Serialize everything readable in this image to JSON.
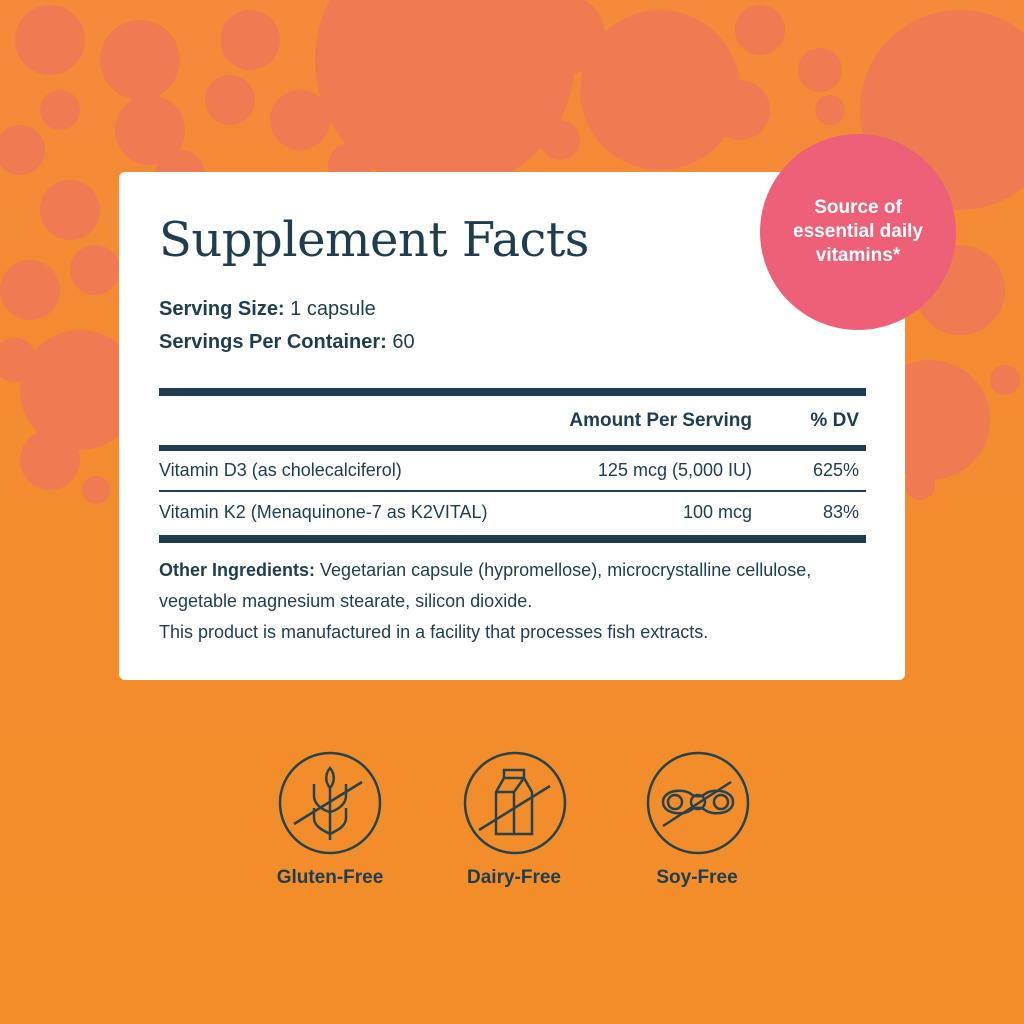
{
  "title": "Supplement Facts",
  "serving_size_label": "Serving Size:",
  "serving_size_value": "1 capsule",
  "servings_label": "Servings Per Container:",
  "servings_value": "60",
  "table": {
    "headers": [
      "Amount Per Serving",
      "% DV"
    ],
    "rows": [
      {
        "name": "Vitamin D3 (as cholecalciferol)",
        "amount": "125 mcg (5,000 IU)",
        "dv": "625%"
      },
      {
        "name": "Vitamin K2 (Menaquinone-7 as K2VITAL)",
        "amount": "100 mcg",
        "dv": "83%"
      }
    ]
  },
  "other_label": "Other Ingredients:",
  "other_text": "Vegetarian capsule (hypromellose), microcrystalline cellulose, vegetable magnesium stearate, silicon dioxide.",
  "facility_note": "This product is manufactured in a facility that processes fish extracts.",
  "badge": "Source of essential daily vitamins*",
  "icons": [
    {
      "icon": "wheat-crossed-icon",
      "label": "Gluten-Free"
    },
    {
      "icon": "milk-carton-crossed-icon",
      "label": "Dairy-Free"
    },
    {
      "icon": "soybean-crossed-icon",
      "label": "Soy-Free"
    }
  ],
  "colors": {
    "background": "#f28d2b",
    "bubbles": "#f07a52",
    "card": "#ffffff",
    "text": "#1f3d4f",
    "badge": "#ee5f78"
  }
}
